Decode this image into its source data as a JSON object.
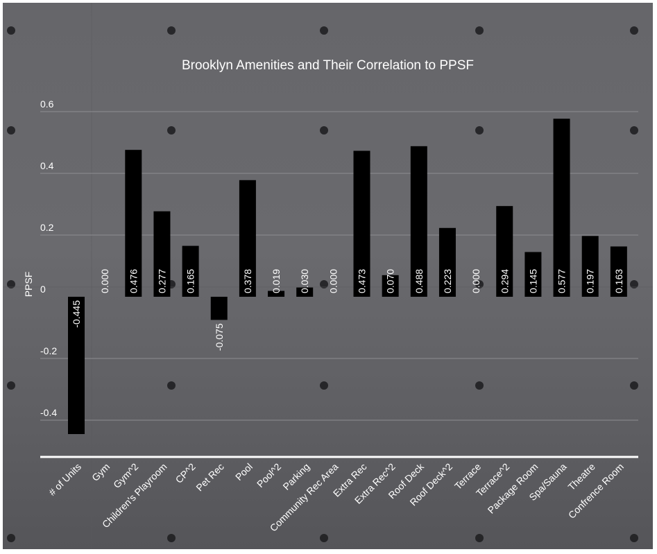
{
  "chart_data": {
    "type": "bar",
    "title": "Brooklyn Amenities and Their Correlation to PPSF",
    "ylabel": "PPSF",
    "xlabel": "",
    "ylim": [
      -0.5,
      0.6
    ],
    "yticks": [
      0.6,
      0.4,
      0.2,
      0,
      -0.2,
      -0.4
    ],
    "ytick_labels": [
      "0.6",
      "0.4",
      "0.2",
      "0",
      "-0.2",
      "-0.4"
    ],
    "grid": true,
    "legend": "none",
    "categories": [
      "# of Units",
      "Gym",
      "Gym^2",
      "Children's Playroom",
      "CP^2",
      "Pet Rec",
      "Pool",
      "Pool^2",
      "Parking",
      "Community Rec Area",
      "Extra Rec",
      "Extra Rec^2",
      "Roof Deck",
      "Roof Deck^2",
      "Terrace",
      "Terrace^2",
      "Package Room",
      "Spa/Sauna",
      "Theatre",
      "Confrence Room"
    ],
    "values": [
      -0.445,
      0.0,
      0.476,
      0.277,
      0.165,
      -0.075,
      0.378,
      0.019,
      0.03,
      0.0,
      0.473,
      0.07,
      0.488,
      0.223,
      0.0,
      0.294,
      0.145,
      0.577,
      0.197,
      0.163
    ],
    "data_labels": [
      "-0.445",
      "0.000",
      "0.476",
      "0.277",
      "0.165",
      "-0.075",
      "0.378",
      "0.019",
      "0.030",
      "0.000",
      "0.473",
      "0.070",
      "0.488",
      "0.223",
      "0.000",
      "0.294",
      "0.145",
      "0.577",
      "0.197",
      "0.163"
    ],
    "colors": {
      "bar": "#000000",
      "text": "#ffffff",
      "grid": "#8e8e92",
      "baseline": "#ffffff"
    }
  }
}
